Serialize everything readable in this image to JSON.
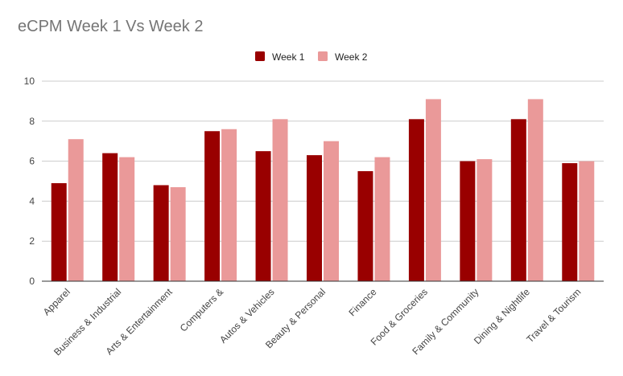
{
  "chart_data": {
    "type": "bar",
    "title": "eCPM Week 1 Vs Week 2",
    "xlabel": "",
    "ylabel": "",
    "ylim": [
      0,
      10
    ],
    "yticks": [
      0,
      2,
      4,
      6,
      8,
      10
    ],
    "grid": true,
    "legend_position": "top",
    "categories": [
      "Apparel",
      "Business & Industrial",
      "Arts & Entertainment",
      "Computers &",
      "Autos & Vehicles",
      "Beauty & Personal",
      "Finance",
      "Food & Groceries",
      "Family & Community",
      "Dining & Nightlife",
      "Travel & Tourism"
    ],
    "series": [
      {
        "name": "Week 1",
        "color": "#990000",
        "values": [
          4.9,
          6.4,
          4.8,
          7.5,
          6.5,
          6.3,
          5.5,
          8.1,
          6.0,
          8.1,
          5.9
        ]
      },
      {
        "name": "Week 2",
        "color": "#ea9999",
        "values": [
          7.1,
          6.2,
          4.7,
          7.6,
          8.1,
          7.0,
          6.2,
          9.1,
          6.1,
          9.1,
          6.0
        ]
      }
    ]
  }
}
